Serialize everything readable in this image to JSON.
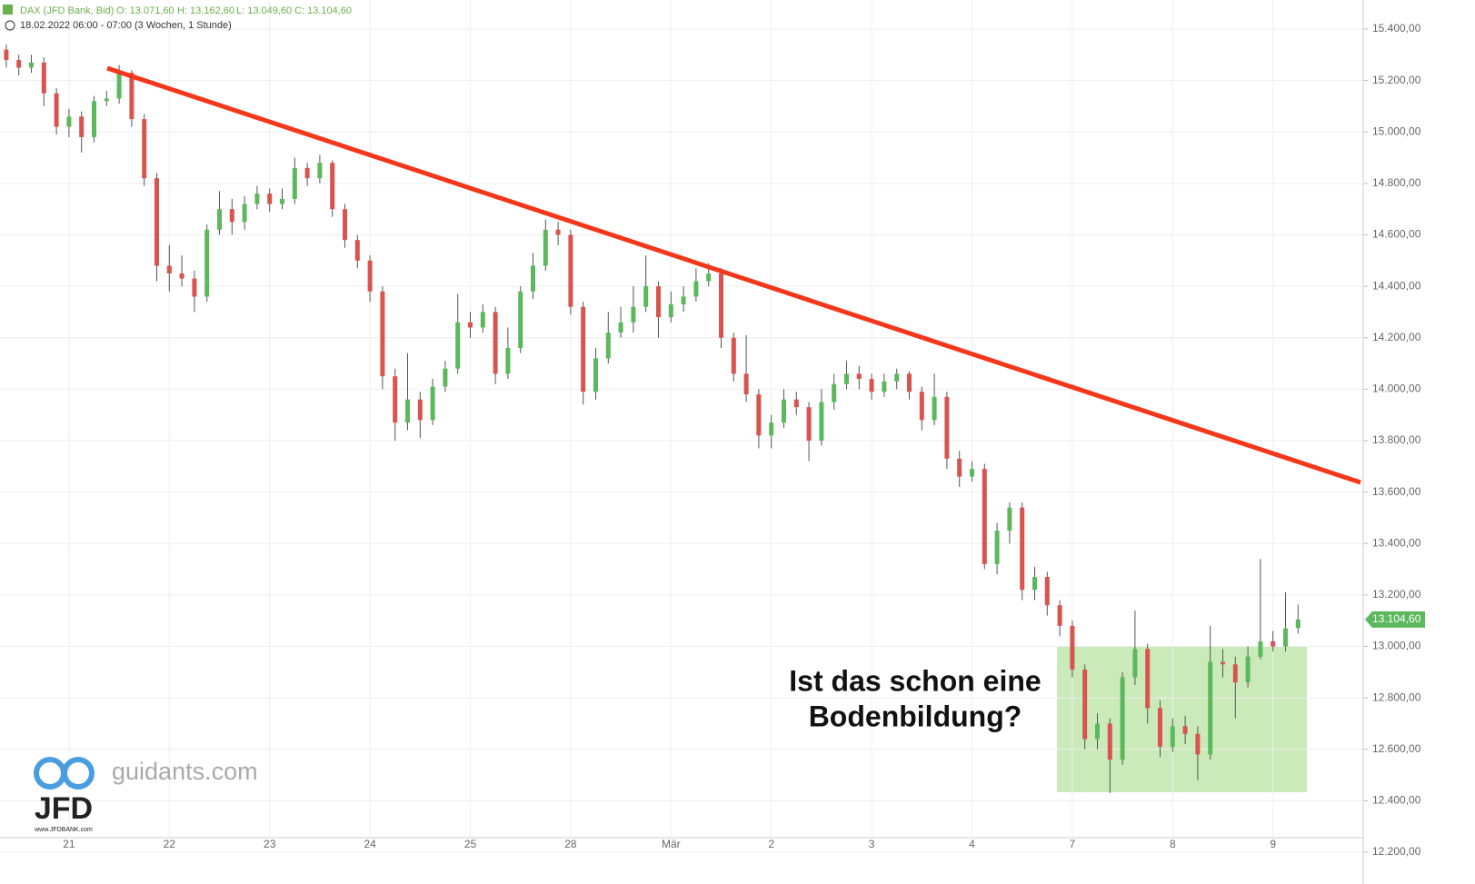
{
  "chart_data": {
    "type": "candlestick",
    "title": "DAX (JFD Bank, Bid)",
    "ohlc_header": [
      "O: 13.071,60",
      "H: 13.162,60",
      "L: 13.049,60",
      "C: 13.104,60"
    ],
    "subtitle": "18.02.2022 06:00 - 07:00",
    "period": "(3 Wochen, 1 Stunde)",
    "categories": [
      null,
      null,
      null,
      null,
      null,
      "21",
      null,
      null,
      null,
      null,
      null,
      null,
      null,
      "22",
      null,
      null,
      null,
      null,
      null,
      null,
      null,
      "23",
      null,
      null,
      null,
      null,
      null,
      null,
      null,
      "24",
      null,
      null,
      null,
      null,
      null,
      null,
      null,
      "25",
      null,
      null,
      null,
      null,
      null,
      null,
      null,
      "28",
      null,
      null,
      null,
      null,
      null,
      null,
      null,
      "Mär",
      null,
      null,
      null,
      null,
      null,
      null,
      null,
      "2",
      null,
      null,
      null,
      null,
      null,
      null,
      null,
      "3",
      null,
      null,
      null,
      null,
      null,
      null,
      null,
      "4",
      null,
      null,
      null,
      null,
      null,
      null,
      null,
      "7",
      null,
      null,
      null,
      null,
      null,
      null,
      null,
      "8",
      null,
      null,
      null,
      null,
      null,
      null,
      null,
      "9",
      null,
      null
    ],
    "open": [
      15320,
      15280,
      15250,
      15270,
      15150,
      15020,
      15060,
      14980,
      15120,
      15130,
      15230,
      15050,
      14820,
      14480,
      14450,
      14430,
      14360,
      14620,
      14700,
      14650,
      14720,
      14760,
      14720,
      14740,
      14860,
      14820,
      14880,
      14700,
      14580,
      14500,
      14380,
      14050,
      13870,
      13960,
      13880,
      14010,
      14080,
      14260,
      14240,
      14300,
      14060,
      14160,
      14380,
      14480,
      14620,
      14600,
      14320,
      13990,
      14120,
      14220,
      14260,
      14320,
      14400,
      14280,
      14330,
      14360,
      14420,
      14450,
      14200,
      14060,
      13980,
      13820,
      13870,
      13960,
      13930,
      13800,
      13950,
      14020,
      14060,
      14040,
      13990,
      14030,
      14060,
      13990,
      13880,
      13970,
      13730,
      13660,
      13690,
      13320,
      13450,
      13540,
      13220,
      13270,
      13160,
      13080,
      12910,
      12640,
      12700,
      12560,
      12880,
      12990,
      12760,
      12610,
      12690,
      12660,
      12580,
      12940,
      12930,
      12860,
      12960,
      13020,
      13000,
      13071.6
    ],
    "high": [
      15340,
      15300,
      15300,
      15290,
      15170,
      15090,
      15080,
      15140,
      15160,
      15260,
      15240,
      15070,
      14840,
      14560,
      14520,
      14460,
      14640,
      14770,
      14740,
      14750,
      14790,
      14780,
      14780,
      14900,
      14880,
      14910,
      14890,
      14720,
      14600,
      14520,
      14400,
      14080,
      14140,
      13990,
      14040,
      14110,
      14370,
      14300,
      14330,
      14320,
      14240,
      14400,
      14530,
      14660,
      14650,
      14620,
      14340,
      14160,
      14300,
      14320,
      14400,
      14520,
      14420,
      14380,
      14400,
      14470,
      14490,
      14470,
      14220,
      14210,
      14000,
      13900,
      14000,
      13990,
      13950,
      14000,
      14060,
      14110,
      14090,
      14060,
      14060,
      14080,
      14070,
      14010,
      14060,
      13990,
      13760,
      13720,
      13710,
      13480,
      13560,
      13560,
      13310,
      13290,
      13180,
      13100,
      12930,
      12740,
      12720,
      12900,
      13140,
      13010,
      12790,
      12720,
      12730,
      12690,
      13080,
      12990,
      12960,
      13000,
      13340,
      13060,
      13210,
      13162.6
    ],
    "low": [
      15250,
      15220,
      15230,
      15100,
      14990,
      14980,
      14920,
      14960,
      15100,
      15110,
      15020,
      14790,
      14420,
      14380,
      14400,
      14300,
      14340,
      14600,
      14600,
      14620,
      14700,
      14690,
      14700,
      14720,
      14790,
      14800,
      14670,
      14550,
      14470,
      14340,
      14000,
      13800,
      13840,
      13810,
      13860,
      13990,
      14060,
      14200,
      14220,
      14020,
      14040,
      14140,
      14350,
      14460,
      14560,
      14290,
      13940,
      13960,
      14100,
      14200,
      14220,
      14300,
      14200,
      14260,
      14300,
      14340,
      14400,
      14160,
      14030,
      13950,
      13770,
      13770,
      13850,
      13900,
      13720,
      13780,
      13920,
      14000,
      14000,
      13960,
      13970,
      14000,
      13960,
      13840,
      13860,
      13690,
      13620,
      13640,
      13300,
      13280,
      13400,
      13180,
      13180,
      13120,
      13040,
      12880,
      12600,
      12600,
      12430,
      12540,
      12850,
      12700,
      12570,
      12590,
      12620,
      12480,
      12560,
      12880,
      12720,
      12840,
      12950,
      12980,
      12980,
      13049.6
    ],
    "close": [
      15280,
      15250,
      15270,
      15150,
      15020,
      15060,
      14980,
      15120,
      15130,
      15230,
      15050,
      14820,
      14480,
      14450,
      14430,
      14360,
      14620,
      14700,
      14650,
      14720,
      14760,
      14720,
      14740,
      14860,
      14820,
      14880,
      14700,
      14580,
      14500,
      14380,
      14050,
      13870,
      13960,
      13880,
      14010,
      14080,
      14260,
      14240,
      14300,
      14060,
      14160,
      14380,
      14480,
      14620,
      14600,
      14320,
      13990,
      14120,
      14220,
      14260,
      14320,
      14400,
      14280,
      14330,
      14360,
      14420,
      14450,
      14200,
      14060,
      13980,
      13820,
      13870,
      13960,
      13930,
      13800,
      13950,
      14020,
      14060,
      14040,
      13990,
      14030,
      14060,
      13990,
      13880,
      13970,
      13730,
      13660,
      13690,
      13320,
      13450,
      13540,
      13220,
      13270,
      13160,
      13080,
      12910,
      12640,
      12700,
      12560,
      12880,
      12990,
      12760,
      12610,
      12690,
      12660,
      12580,
      12940,
      12930,
      12860,
      12960,
      13020,
      13000,
      13070,
      13104.6
    ],
    "up_color": "#5cb85c",
    "down_color": "#d9534f",
    "last_label": "13.104,60",
    "ylim": [
      12200,
      15513
    ],
    "yticks": [
      {
        "value": 12200,
        "label": "12.200,00"
      },
      {
        "value": 12400,
        "label": "12.400,00"
      },
      {
        "value": 12600,
        "label": "12.600,00"
      },
      {
        "value": 12800,
        "label": "12.800,00"
      },
      {
        "value": 13000,
        "label": "13.000,00"
      },
      {
        "value": 13200,
        "label": "13.200,00"
      },
      {
        "value": 13400,
        "label": "13.400,00"
      },
      {
        "value": 13600,
        "label": "13.600,00"
      },
      {
        "value": 13800,
        "label": "13.800,00"
      },
      {
        "value": 14000,
        "label": "14.000,00"
      },
      {
        "value": 14200,
        "label": "14.200,00"
      },
      {
        "value": 14400,
        "label": "14.400,00"
      },
      {
        "value": 14600,
        "label": "14.600,00"
      },
      {
        "value": 14800,
        "label": "14.800,00"
      },
      {
        "value": 15000,
        "label": "15.000,00"
      },
      {
        "value": 15200,
        "label": "15.200,00"
      },
      {
        "value": 15400,
        "label": "15.400,00"
      }
    ],
    "grid": true,
    "annotation": [
      "Ist das schon eine",
      "Bodenbildung?"
    ]
  },
  "branding": {
    "site": "guidants.com",
    "logo": "JFD",
    "url": "www.JFDBANK.com"
  }
}
